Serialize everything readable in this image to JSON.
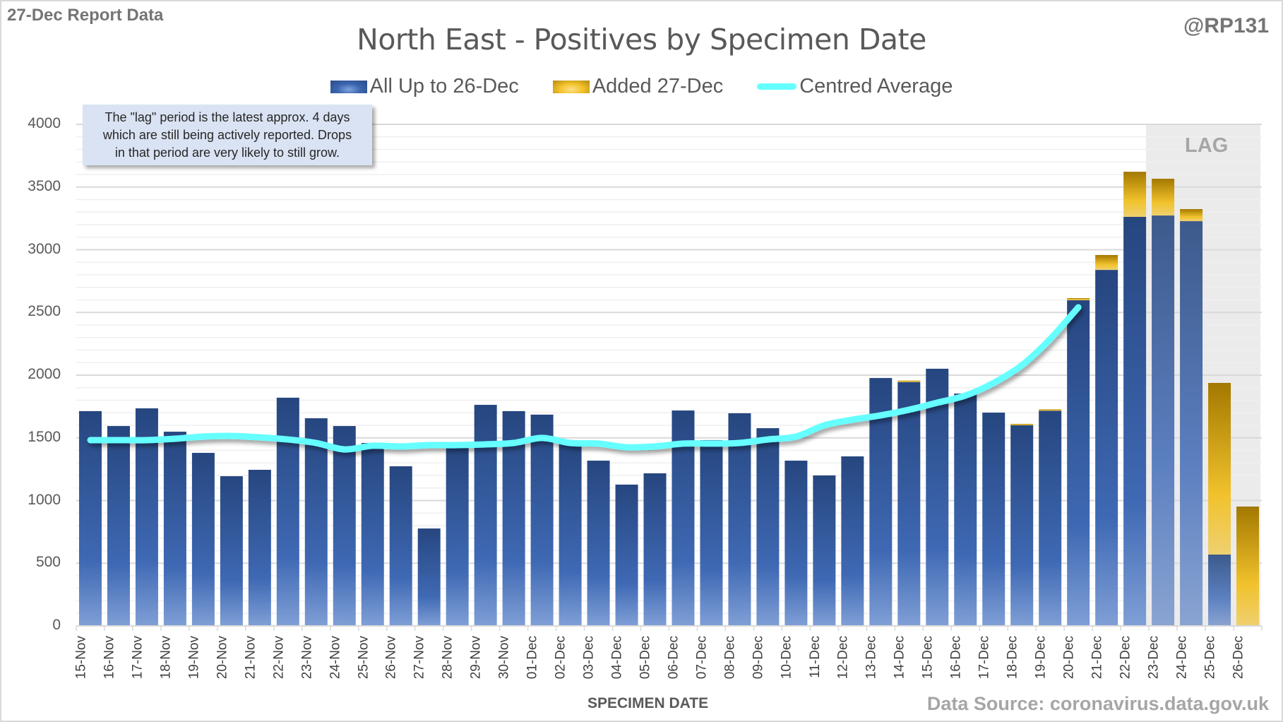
{
  "header": {
    "report_tag": "27-Dec Report Data",
    "handle": "@RP131",
    "title": "North East - Positives by Specimen Date"
  },
  "legend": {
    "items": [
      {
        "label": "All Up to 26-Dec",
        "icon": "blue-bar-swatch"
      },
      {
        "label": "Added 27-Dec",
        "icon": "gold-bar-swatch"
      },
      {
        "label": "Centred Average",
        "icon": "cyan-line-swatch"
      }
    ]
  },
  "note": {
    "lines": [
      "The \"lag\" period is the latest approx. 4 days",
      "which are still being actively reported.  Drops",
      "in that period are very likely to still grow."
    ]
  },
  "lag_label": "LAG",
  "footer": {
    "xlabel": "SPECIMEN DATE",
    "source": "Data Source: coronavirus.data.gov.uk"
  },
  "colors": {
    "blue_series": "#2f5597",
    "gold_series": "#f0c020",
    "average_line": "#66ffff",
    "lag_band": "#ebebeb",
    "grid": "#e6e6e6"
  },
  "chart_data": {
    "type": "bar",
    "stacked": true,
    "title": "North East - Positives by Specimen Date",
    "xlabel": "SPECIMEN DATE",
    "ylabel": "",
    "ylim": [
      0,
      4000
    ],
    "yticks": [
      0,
      500,
      1000,
      1500,
      2000,
      2500,
      3000,
      3500,
      4000
    ],
    "grid": true,
    "legend_position": "top-center",
    "lag_categories": [
      "23-Dec",
      "24-Dec",
      "25-Dec",
      "26-Dec"
    ],
    "categories": [
      "15-Nov",
      "16-Nov",
      "17-Nov",
      "18-Nov",
      "19-Nov",
      "20-Nov",
      "21-Nov",
      "22-Nov",
      "23-Nov",
      "24-Nov",
      "25-Nov",
      "26-Nov",
      "27-Nov",
      "28-Nov",
      "29-Nov",
      "30-Nov",
      "01-Dec",
      "02-Dec",
      "03-Dec",
      "04-Dec",
      "05-Dec",
      "06-Dec",
      "07-Dec",
      "08-Dec",
      "09-Dec",
      "10-Dec",
      "11-Dec",
      "12-Dec",
      "13-Dec",
      "14-Dec",
      "15-Dec",
      "16-Dec",
      "17-Dec",
      "18-Dec",
      "19-Dec",
      "20-Dec",
      "21-Dec",
      "22-Dec",
      "23-Dec",
      "24-Dec",
      "25-Dec",
      "26-Dec"
    ],
    "series": [
      {
        "name": "All Up to 26-Dec",
        "kind": "bar",
        "values": [
          1713,
          1594,
          1735,
          1549,
          1380,
          1194,
          1245,
          1820,
          1656,
          1594,
          1459,
          1273,
          777,
          1440,
          1763,
          1713,
          1685,
          1455,
          1318,
          1127,
          1217,
          1718,
          1482,
          1696,
          1577,
          1318,
          1200,
          1352,
          1977,
          1945,
          2051,
          1853,
          1701,
          1600,
          1716,
          2597,
          2839,
          3262,
          3273,
          3228,
          569,
          0
        ]
      },
      {
        "name": "Added 27-Dec",
        "kind": "bar",
        "values": [
          0,
          0,
          0,
          0,
          0,
          0,
          0,
          0,
          0,
          0,
          0,
          0,
          0,
          0,
          0,
          0,
          0,
          0,
          0,
          0,
          0,
          0,
          0,
          0,
          0,
          0,
          0,
          0,
          0,
          10,
          0,
          0,
          0,
          6,
          8,
          17,
          119,
          360,
          293,
          96,
          1369,
          952
        ]
      },
      {
        "name": "Centred Average",
        "kind": "line",
        "values": [
          1482,
          1482,
          1482,
          1493,
          1510,
          1515,
          1504,
          1487,
          1459,
          1408,
          1437,
          1431,
          1442,
          1442,
          1448,
          1459,
          1499,
          1459,
          1454,
          1425,
          1431,
          1454,
          1454,
          1459,
          1487,
          1510,
          1600,
          1645,
          1679,
          1724,
          1780,
          1837,
          1938,
          2079,
          2287,
          2541,
          null,
          null,
          null,
          null,
          null,
          null
        ]
      }
    ]
  }
}
